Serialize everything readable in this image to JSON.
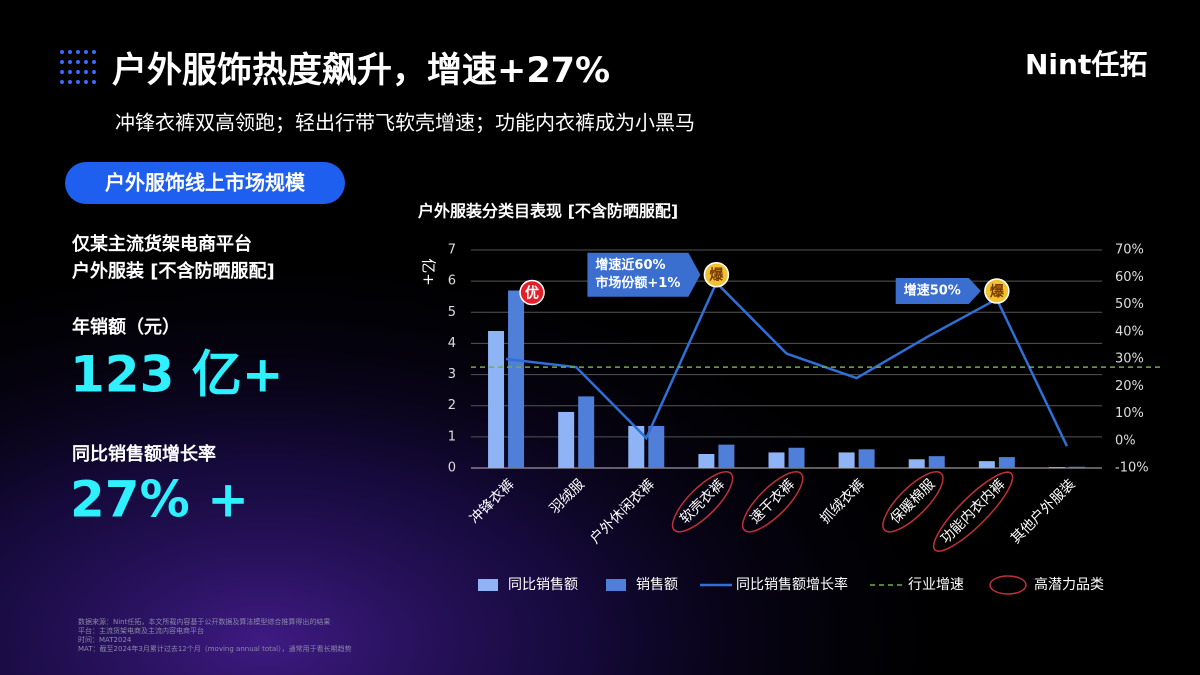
{
  "header": {
    "title": "户外服饰热度飙升，增速+27%",
    "subtitle": "冲锋衣裤双高领跑；轻出行带飞软壳增速；功能内衣裤成为小黑马",
    "logo": "Nint任拓"
  },
  "sidebar": {
    "badge": "户外服饰线上市场规模",
    "scope": [
      "仅某主流货架电商平台",
      "户外服装 [不含防晒服配]"
    ],
    "sales_label": "年销额（元）",
    "sales_value": "123 亿+",
    "growth_label": "同比销售额增长率",
    "growth_value": "27% +"
  },
  "chart_data": {
    "type": "bar",
    "title": "户外服装分类目表现 [不含防晒服配]",
    "y_label": "亿+",
    "categories": [
      "冲锋衣裤",
      "羽绒服",
      "户外休闲衣裤",
      "软壳衣裤",
      "速干衣裤",
      "抓绒衣裤",
      "保暖棉服",
      "功能内衣内裤",
      "其他户外服装"
    ],
    "series": [
      {
        "name": "同比销售额",
        "color": "#8fb4f5",
        "values": [
          4.4,
          1.8,
          1.35,
          0.45,
          0.5,
          0.5,
          0.28,
          0.22,
          0.03
        ]
      },
      {
        "name": "销售额",
        "color": "#4f7fd9",
        "values": [
          5.7,
          2.3,
          1.35,
          0.75,
          0.65,
          0.6,
          0.38,
          0.35,
          0.04
        ]
      },
      {
        "name": "同比销售额增长率",
        "color": "#2f6fd6",
        "type": "line",
        "axis": "y2",
        "values": [
          30,
          27,
          1,
          58,
          32,
          23,
          38,
          52,
          -2
        ]
      }
    ],
    "ylim": [
      0,
      7
    ],
    "yticks": [
      0,
      1,
      2,
      3,
      4,
      5,
      6,
      7
    ],
    "y2lim": [
      -10,
      70
    ],
    "y2ticks": [
      {
        "value": -10,
        "label": "-10%"
      },
      {
        "value": 0,
        "label": "0%"
      },
      {
        "value": 10,
        "label": "10%"
      },
      {
        "value": 20,
        "label": "20%"
      },
      {
        "value": 30,
        "label": "30%"
      },
      {
        "value": 40,
        "label": "40%"
      },
      {
        "value": 50,
        "label": "50%"
      },
      {
        "value": 60,
        "label": "60%"
      },
      {
        "value": 70,
        "label": "70%"
      }
    ],
    "grid": true,
    "reference_line": {
      "name": "行业增速",
      "value": 27,
      "axis": "y2",
      "color": "#6fae4a"
    },
    "highlight": {
      "name": "高潜力品类",
      "categories": [
        3,
        4,
        6,
        7
      ],
      "color": "#c0303a"
    },
    "annotations": [
      {
        "lines": [
          "增速近60%",
          "市场份额+1%"
        ],
        "category": 3
      },
      {
        "lines": [
          "增速50%"
        ],
        "category": 7
      }
    ],
    "markers": [
      {
        "text": "优",
        "category": 0,
        "color": "#e3202a"
      },
      {
        "text": "爆",
        "category": 3,
        "color": "#f2c230"
      },
      {
        "text": "爆",
        "category": 7,
        "color": "#f2c230"
      }
    ]
  },
  "footnote": [
    "数据来源：Nint任拓，本文所载内容基于公开数据及算法模型综合推算得出的结果",
    "平台：主流货架电商及主流内容电商平台",
    "时间：MAT2024",
    "MAT：截至2024年3月累计过去12个月（moving annual total），通常用于看长期趋势"
  ]
}
